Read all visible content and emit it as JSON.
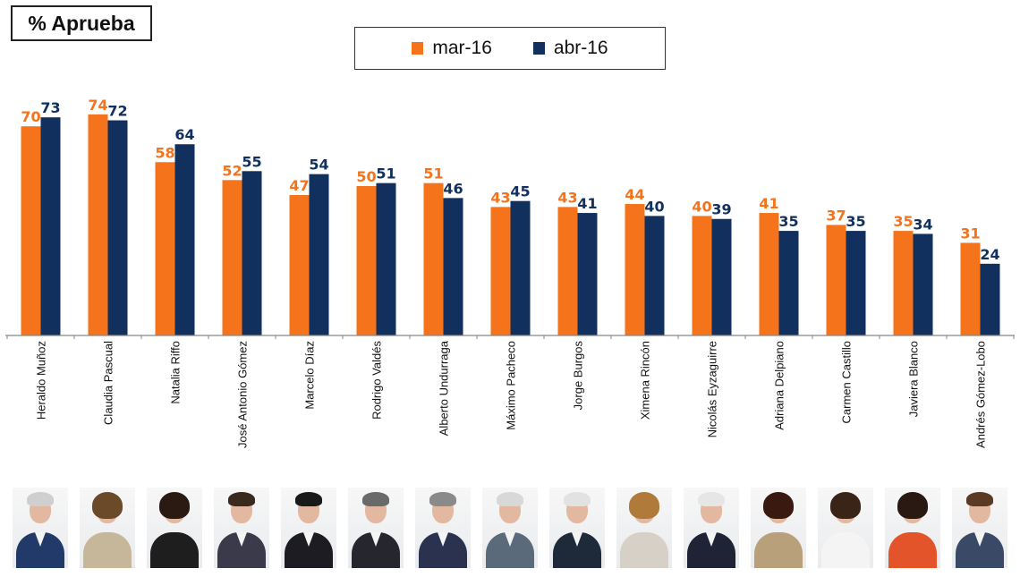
{
  "title": "% Aprueba",
  "colors": {
    "mar": "#F5731B",
    "abr": "#12305E",
    "axis": "#888888",
    "text": "#111111"
  },
  "chart_data": {
    "type": "bar",
    "title": "% Aprueba",
    "xlabel": "",
    "ylabel": "",
    "ylim": [
      0,
      80
    ],
    "grid": false,
    "legend_placement": "top-center",
    "categories": [
      "Heraldo Muñoz",
      "Claudia Pascual",
      "Natalia Riffo",
      "José Antonio Gómez",
      "Marcelo Díaz",
      "Rodrigo Valdés",
      "Alberto Undurraga",
      "Máximo Pacheco",
      "Jorge Burgos",
      "Ximena Rincón",
      "Nicolás Eyzaguirre",
      "Adriana Delpiano",
      "Carmen Castillo",
      "Javiera Blanco",
      "Andrés Gómez-Lobo"
    ],
    "series": [
      {
        "name": "mar-16",
        "color": "#F5731B",
        "values": [
          70,
          74,
          58,
          52,
          47,
          50,
          51,
          43,
          43,
          44,
          40,
          41,
          37,
          35,
          31
        ]
      },
      {
        "name": "abr-16",
        "color": "#12305E",
        "values": [
          73,
          72,
          64,
          55,
          54,
          51,
          46,
          45,
          41,
          40,
          39,
          35,
          35,
          34,
          24
        ]
      }
    ]
  },
  "portraits": [
    {
      "icon": "male-portrait-icon",
      "hair": "#cfcfcf",
      "suit": "#223a6a"
    },
    {
      "icon": "female-portrait-icon",
      "hair": "#6b4a2a",
      "suit": "#c7b79a"
    },
    {
      "icon": "female-portrait-icon",
      "hair": "#2a1a12",
      "suit": "#1e1e1e"
    },
    {
      "icon": "male-portrait-icon",
      "hair": "#3a2a1e",
      "suit": "#3a3a4a"
    },
    {
      "icon": "male-portrait-icon",
      "hair": "#1a1a1a",
      "suit": "#1c1c22"
    },
    {
      "icon": "male-portrait-icon",
      "hair": "#6a6a6a",
      "suit": "#26262e"
    },
    {
      "icon": "male-portrait-icon",
      "hair": "#8a8a8a",
      "suit": "#2a3250"
    },
    {
      "icon": "male-portrait-icon",
      "hair": "#d8d8d8",
      "suit": "#5a6a7a"
    },
    {
      "icon": "male-portrait-icon",
      "hair": "#e2e2e2",
      "suit": "#1e2a3a"
    },
    {
      "icon": "female-portrait-icon",
      "hair": "#b07a3a",
      "suit": "#d6d0c6"
    },
    {
      "icon": "male-portrait-icon",
      "hair": "#e6e6e6",
      "suit": "#1e2436"
    },
    {
      "icon": "female-portrait-icon",
      "hair": "#3a1a10",
      "suit": "#b8a07a"
    },
    {
      "icon": "female-portrait-icon",
      "hair": "#3a2418",
      "suit": "#f4f4f4"
    },
    {
      "icon": "female-portrait-icon",
      "hair": "#2a1812",
      "suit": "#e4542a"
    },
    {
      "icon": "male-portrait-icon",
      "hair": "#5a3a22",
      "suit": "#3a4a66"
    }
  ]
}
